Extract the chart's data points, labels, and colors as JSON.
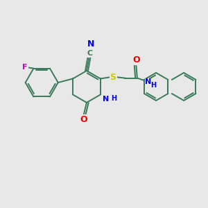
{
  "bg_color": "#e8e8e8",
  "bond_color": "#3a7a5a",
  "bond_width": 1.4,
  "atom_colors": {
    "F": "#cc00cc",
    "N": "#0000ee",
    "O": "#ee0000",
    "S": "#cccc00",
    "C": "#000000",
    "H": "#000000"
  },
  "font_size": 7.5,
  "figsize": [
    3.0,
    3.0
  ],
  "dpi": 100
}
